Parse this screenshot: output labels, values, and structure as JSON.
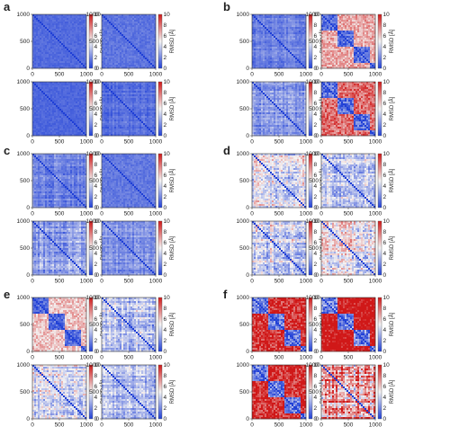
{
  "chart_data": {
    "type": "heatmap",
    "colorscale": {
      "low": "#1f3fd6",
      "mid": "#f4f4f4",
      "high": "#d01818"
    },
    "colorbar": {
      "label": "RMSD [Å]",
      "range": [
        0,
        10
      ],
      "ticks": [
        "0",
        "2",
        "4",
        "6",
        "8",
        "10"
      ]
    },
    "axes": {
      "xlim": [
        0,
        1000
      ],
      "ylim": [
        0,
        1000
      ],
      "x_ticks": [
        "0",
        "500",
        "1000"
      ],
      "y_ticks": [
        "0",
        "500",
        "1000"
      ]
    },
    "panels": [
      {
        "letter": "a",
        "maps": [
          {
            "mean_rmsd": 1.2,
            "pattern": "uniform"
          },
          {
            "mean_rmsd": 1.5,
            "pattern": "uniform"
          },
          {
            "mean_rmsd": 1.1,
            "pattern": "uniform"
          },
          {
            "mean_rmsd": 1.5,
            "pattern": "grid"
          }
        ]
      },
      {
        "letter": "b",
        "maps": [
          {
            "mean_rmsd": 2.0,
            "pattern": "grid"
          },
          {
            "mean_rmsd": 5.0,
            "pattern": "block"
          },
          {
            "mean_rmsd": 2.8,
            "pattern": "grid"
          },
          {
            "mean_rmsd": 6.0,
            "pattern": "block"
          }
        ]
      },
      {
        "letter": "c",
        "maps": [
          {
            "mean_rmsd": 2.2,
            "pattern": "grid"
          },
          {
            "mean_rmsd": 1.6,
            "pattern": "uniform"
          },
          {
            "mean_rmsd": 3.0,
            "pattern": "grid"
          },
          {
            "mean_rmsd": 2.4,
            "pattern": "grid"
          }
        ]
      },
      {
        "letter": "d",
        "maps": [
          {
            "mean_rmsd": 5.2,
            "pattern": "grid"
          },
          {
            "mean_rmsd": 4.6,
            "pattern": "grid"
          },
          {
            "mean_rmsd": 5.0,
            "pattern": "grid"
          },
          {
            "mean_rmsd": 5.4,
            "pattern": "grid"
          }
        ]
      },
      {
        "letter": "e",
        "maps": [
          {
            "mean_rmsd": 4.6,
            "pattern": "block"
          },
          {
            "mean_rmsd": 4.2,
            "pattern": "grid"
          },
          {
            "mean_rmsd": 5.0,
            "pattern": "grid"
          },
          {
            "mean_rmsd": 3.6,
            "pattern": "grid"
          }
        ]
      },
      {
        "letter": "f",
        "maps": [
          {
            "mean_rmsd": 7.0,
            "pattern": "block"
          },
          {
            "mean_rmsd": 7.8,
            "pattern": "block"
          },
          {
            "mean_rmsd": 7.0,
            "pattern": "block"
          },
          {
            "mean_rmsd": 8.4,
            "pattern": "grid"
          }
        ]
      }
    ]
  }
}
